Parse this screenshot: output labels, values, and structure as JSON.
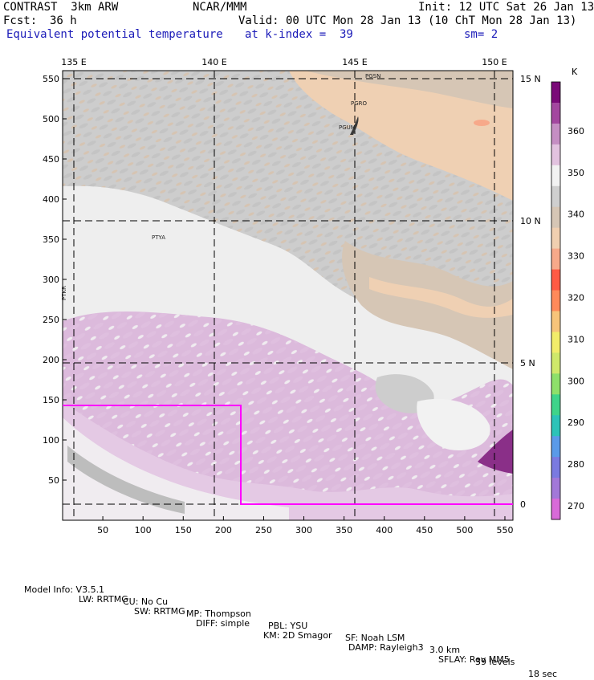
{
  "header": {
    "model": "CONTRAST  3km ARW",
    "org": "NCAR/MMM",
    "init": "Init: 12 UTC Sat 26 Jan 13",
    "fcst_label": "Fcst:",
    "fcst_value": "36 h",
    "valid": "Valid: 00 UTC Mon 28 Jan 13 (10 ChT Mon 28 Jan 13)",
    "field": "Equivalent potential temperature",
    "level": "at k-index =  39",
    "smooth": "sm= 2"
  },
  "map": {
    "lon_labels": [
      "135 E",
      "140 E",
      "145 E",
      "150 E"
    ],
    "lat_labels": [
      "15 N",
      "10 N",
      "5 N",
      "0"
    ],
    "grid_x_ticks": [
      "50",
      "100",
      "150",
      "200",
      "250",
      "300",
      "350",
      "400",
      "450",
      "500",
      "550"
    ],
    "grid_y_ticks": [
      "550",
      "500",
      "450",
      "400",
      "350",
      "300",
      "250",
      "200",
      "150",
      "100",
      "50"
    ],
    "stations": [
      "PGSN",
      "PGRO",
      "PGUM",
      "PTYA",
      "PTKR"
    ],
    "subdomain_box_color": "#ff00ff"
  },
  "colorbar": {
    "unit": "K",
    "tick_labels": [
      "360",
      "350",
      "340",
      "330",
      "320",
      "310",
      "300",
      "290",
      "280",
      "270"
    ],
    "colors": [
      "#7a0a78",
      "#a3479f",
      "#c58ec3",
      "#e2c2df",
      "#f2f2f2",
      "#cfcfcf",
      "#d6c6b5",
      "#f0cfb0",
      "#f7a98a",
      "#ff5a44",
      "#ff8a5a",
      "#f7c47a",
      "#f2ec6a",
      "#cfe86a",
      "#8ee06a",
      "#3fd48a",
      "#2cc3b8",
      "#5a9ae8",
      "#7a7ae0",
      "#a278d8",
      "#d86ad8"
    ]
  },
  "footer": {
    "line1": [
      "Model Info: V3.5.1",
      "CU: No Cu",
      "MP: Thompson",
      "PBL: YSU",
      "SF: Noah LSM",
      "3.0 km",
      "39 levels",
      "18 sec"
    ],
    "line2": [
      "LW: RRTMG",
      "SW: RRTMG",
      "DIFF: simple",
      "KM: 2D Smagor",
      "DAMP: Rayleigh3",
      "SFLAY: Rev MM5"
    ]
  }
}
